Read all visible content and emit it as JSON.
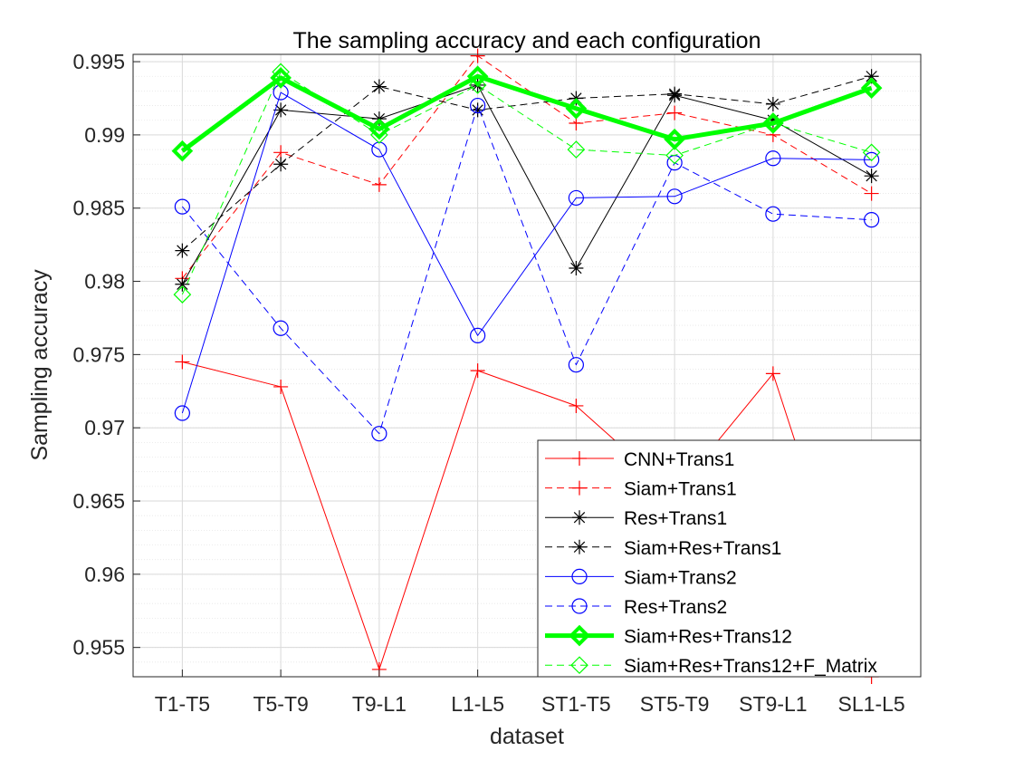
{
  "chart_data": {
    "type": "line",
    "title": "The sampling accuracy and each configuration",
    "xlabel": "dataset",
    "ylabel": "Sampling accuracy",
    "categories": [
      "T1-T5",
      "T5-T9",
      "T9-L1",
      "L1-L5",
      "ST1-T5",
      "ST5-T9",
      "ST9-L1",
      "SL1-L5"
    ],
    "ylim": [
      0.953,
      0.9955
    ],
    "yticks": [
      0.955,
      0.96,
      0.965,
      0.97,
      0.975,
      0.98,
      0.985,
      0.99,
      0.995
    ],
    "yticklabels": [
      "0.955",
      "0.96",
      "0.965",
      "0.97",
      "0.975",
      "0.98",
      "0.985",
      "0.99",
      "0.995"
    ],
    "grid": true,
    "minor_grid": true,
    "legend_position": "bottom-right",
    "series": [
      {
        "name": "CNN+Trans1",
        "values": [
          0.9745,
          0.9728,
          0.9535,
          0.9739,
          0.9715,
          0.9655,
          0.9737,
          0.953
        ],
        "color": "#ff0000",
        "dash": "solid",
        "marker": "plus",
        "width": 1
      },
      {
        "name": "Siam+Trans1",
        "values": [
          0.9802,
          0.9888,
          0.9866,
          0.9954,
          0.9908,
          0.9915,
          0.99,
          0.986
        ],
        "color": "#ff0000",
        "dash": "dashed",
        "marker": "plus",
        "width": 1
      },
      {
        "name": "Res+Trans1",
        "values": [
          0.9798,
          0.9917,
          0.9911,
          0.9934,
          0.9809,
          0.9927,
          0.991,
          0.9872
        ],
        "color": "#000000",
        "dash": "solid",
        "marker": "star",
        "width": 1
      },
      {
        "name": "Siam+Res+Trans1",
        "values": [
          0.9821,
          0.988,
          0.9933,
          0.9917,
          0.9925,
          0.9928,
          0.9921,
          0.994
        ],
        "color": "#000000",
        "dash": "dashed",
        "marker": "star",
        "width": 1
      },
      {
        "name": "Siam+Trans2",
        "values": [
          0.971,
          0.9929,
          0.989,
          0.9763,
          0.9857,
          0.9858,
          0.9884,
          0.9883
        ],
        "color": "#0000ff",
        "dash": "solid",
        "marker": "circle",
        "width": 1
      },
      {
        "name": "Res+Trans2",
        "values": [
          0.9851,
          0.9768,
          0.9696,
          0.992,
          0.9743,
          0.9881,
          0.9846,
          0.9842
        ],
        "color": "#0000ff",
        "dash": "dashed",
        "marker": "circle",
        "width": 1
      },
      {
        "name": "Siam+Res+Trans12",
        "values": [
          0.9889,
          0.9939,
          0.9904,
          0.994,
          0.9918,
          0.9897,
          0.9908,
          0.9932
        ],
        "color": "#00ff00",
        "dash": "solid",
        "marker": "diamond",
        "width": 5
      },
      {
        "name": "Siam+Res+Trans12+F_Matrix",
        "values": [
          0.9791,
          0.9943,
          0.99,
          0.9934,
          0.989,
          0.9886,
          0.9908,
          0.9888
        ],
        "color": "#00ff00",
        "dash": "dashed",
        "marker": "diamond",
        "width": 1
      }
    ]
  }
}
